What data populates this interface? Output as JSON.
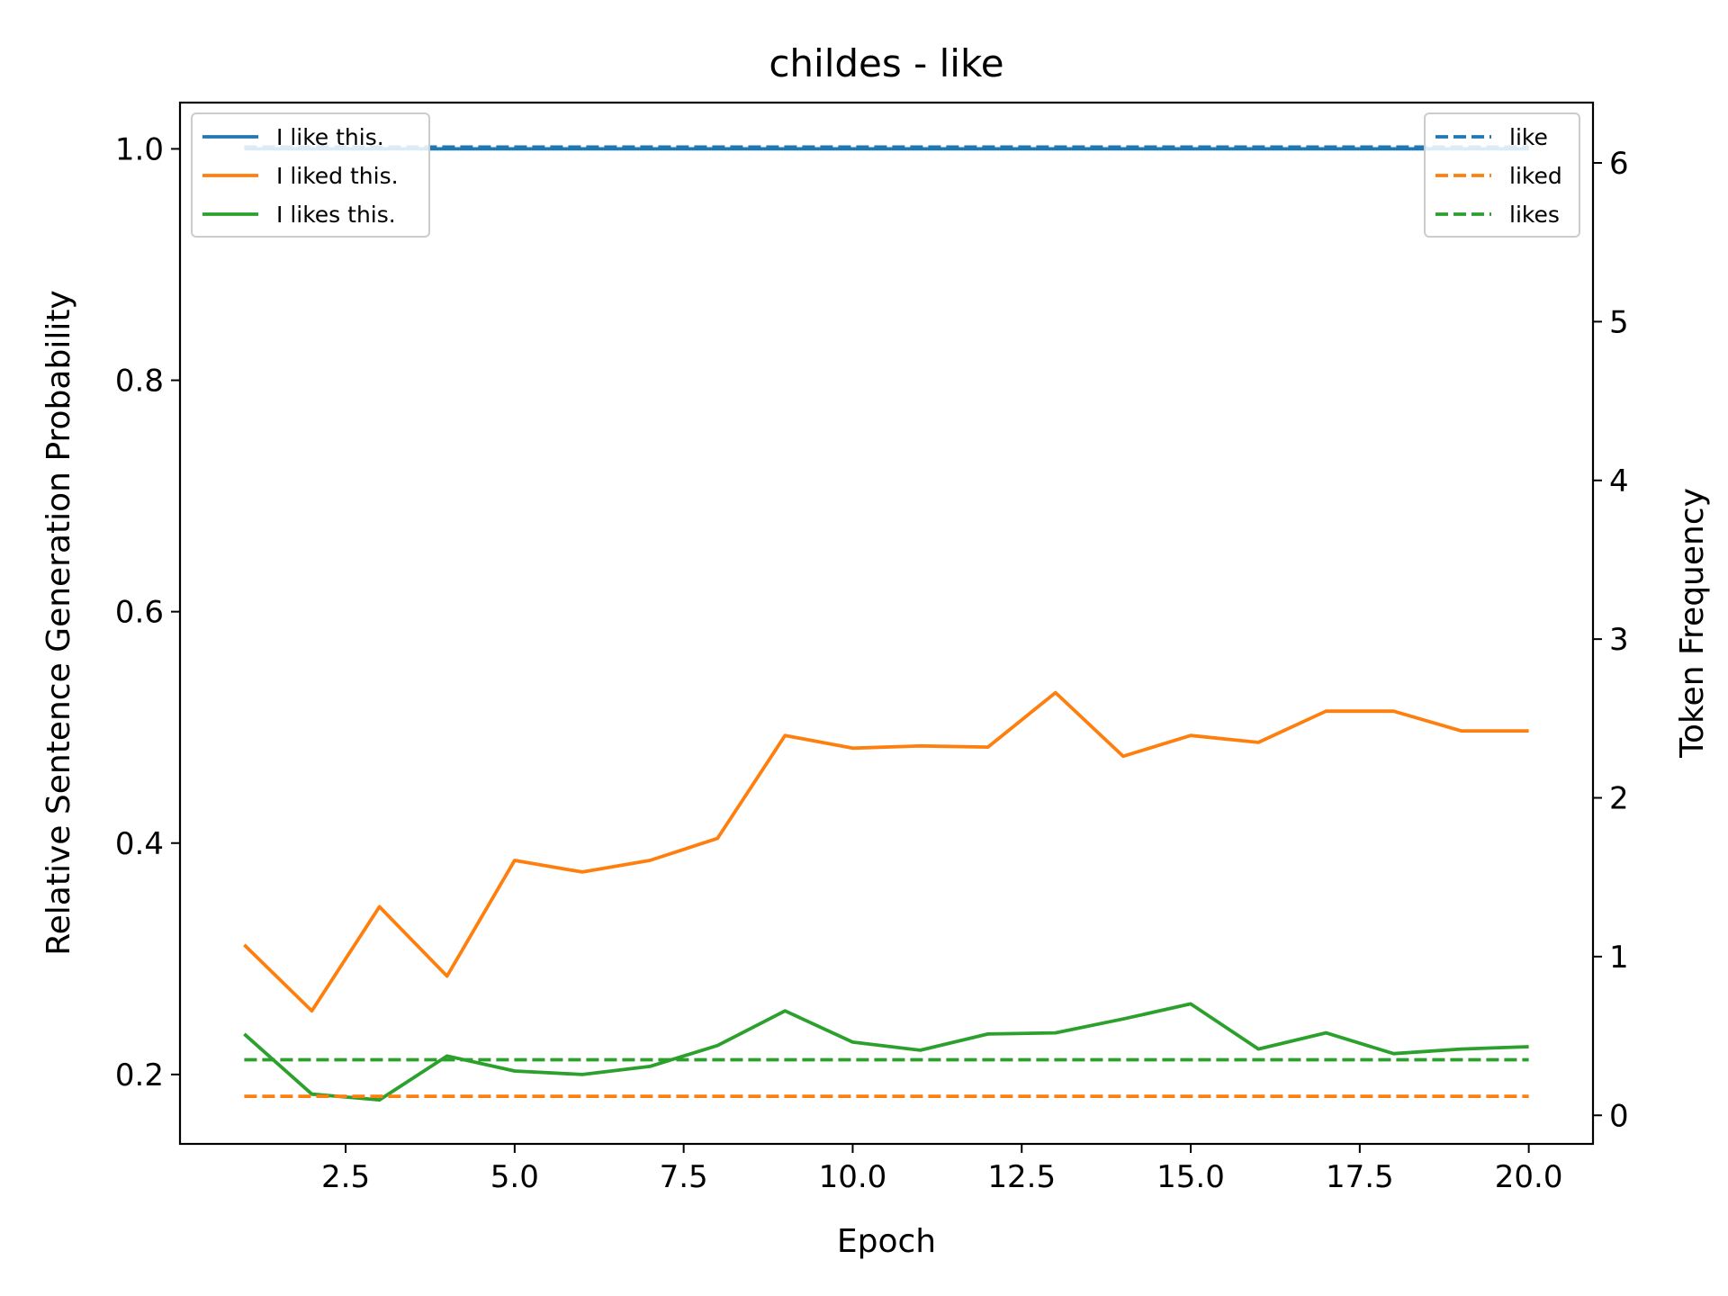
{
  "chart_data": {
    "type": "line",
    "title": "childes - like",
    "xlabel": "Epoch",
    "ylabel": "Relative Sentence Generation Probability",
    "y2label": "Token Frequency",
    "xlim": [
      0.05,
      20.95
    ],
    "ylim": [
      0.14,
      1.04
    ],
    "y2lim": [
      -0.18,
      6.38
    ],
    "x_ticks": [
      2.5,
      5.0,
      7.5,
      10.0,
      12.5,
      15.0,
      17.5,
      20.0
    ],
    "x_tick_labels": [
      "2.5",
      "5.0",
      "7.5",
      "10.0",
      "12.5",
      "15.0",
      "17.5",
      "20.0"
    ],
    "y_ticks": [
      0.2,
      0.4,
      0.6,
      0.8,
      1.0
    ],
    "y_tick_labels": [
      "0.2",
      "0.4",
      "0.6",
      "0.8",
      "1.0"
    ],
    "y2_ticks": [
      0,
      1,
      2,
      3,
      4,
      5,
      6
    ],
    "y2_tick_labels": [
      "0",
      "1",
      "2",
      "3",
      "4",
      "5",
      "6"
    ],
    "grid": false,
    "x": [
      1,
      2,
      3,
      4,
      5,
      6,
      7,
      8,
      9,
      10,
      11,
      12,
      13,
      14,
      15,
      16,
      17,
      18,
      19,
      20
    ],
    "series": [
      {
        "name": "I like this.",
        "axis": "left",
        "style": "solid",
        "color": "#1f77b4",
        "values": [
          1.0,
          1.0,
          1.0,
          1.0,
          1.0,
          1.0,
          1.0,
          1.0,
          1.0,
          1.0,
          1.0,
          1.0,
          1.0,
          1.0,
          1.0,
          1.0,
          1.0,
          1.0,
          1.0,
          1.0
        ]
      },
      {
        "name": "I liked this.",
        "axis": "left",
        "style": "solid",
        "color": "#ff7f0e",
        "values": [
          0.312,
          0.255,
          0.345,
          0.285,
          0.385,
          0.375,
          0.385,
          0.404,
          0.493,
          0.482,
          0.484,
          0.483,
          0.53,
          0.475,
          0.493,
          0.487,
          0.514,
          0.514,
          0.497,
          0.497
        ]
      },
      {
        "name": "I likes this.",
        "axis": "left",
        "style": "solid",
        "color": "#2ca02c",
        "values": [
          0.235,
          0.183,
          0.178,
          0.216,
          0.203,
          0.2,
          0.207,
          0.225,
          0.255,
          0.228,
          0.221,
          0.235,
          0.236,
          0.248,
          0.261,
          0.222,
          0.236,
          0.218,
          0.222,
          0.224
        ]
      },
      {
        "name": "like",
        "axis": "right",
        "style": "dashed",
        "color": "#1f77b4",
        "values": [
          6.1,
          6.1,
          6.1,
          6.1,
          6.1,
          6.1,
          6.1,
          6.1,
          6.1,
          6.1,
          6.1,
          6.1,
          6.1,
          6.1,
          6.1,
          6.1,
          6.1,
          6.1,
          6.1,
          6.1
        ]
      },
      {
        "name": "liked",
        "axis": "right",
        "style": "dashed",
        "color": "#ff7f0e",
        "values": [
          0.12,
          0.12,
          0.12,
          0.12,
          0.12,
          0.12,
          0.12,
          0.12,
          0.12,
          0.12,
          0.12,
          0.12,
          0.12,
          0.12,
          0.12,
          0.12,
          0.12,
          0.12,
          0.12,
          0.12
        ]
      },
      {
        "name": "likes",
        "axis": "right",
        "style": "dashed",
        "color": "#2ca02c",
        "values": [
          0.35,
          0.35,
          0.35,
          0.35,
          0.35,
          0.35,
          0.35,
          0.35,
          0.35,
          0.35,
          0.35,
          0.35,
          0.35,
          0.35,
          0.35,
          0.35,
          0.35,
          0.35,
          0.35,
          0.35
        ]
      }
    ],
    "legends": [
      {
        "placement": "top-left",
        "entries": [
          "I like this.",
          "I liked this.",
          "I likes this."
        ]
      },
      {
        "placement": "top-right",
        "entries": [
          "like",
          "liked",
          "likes"
        ]
      }
    ]
  }
}
